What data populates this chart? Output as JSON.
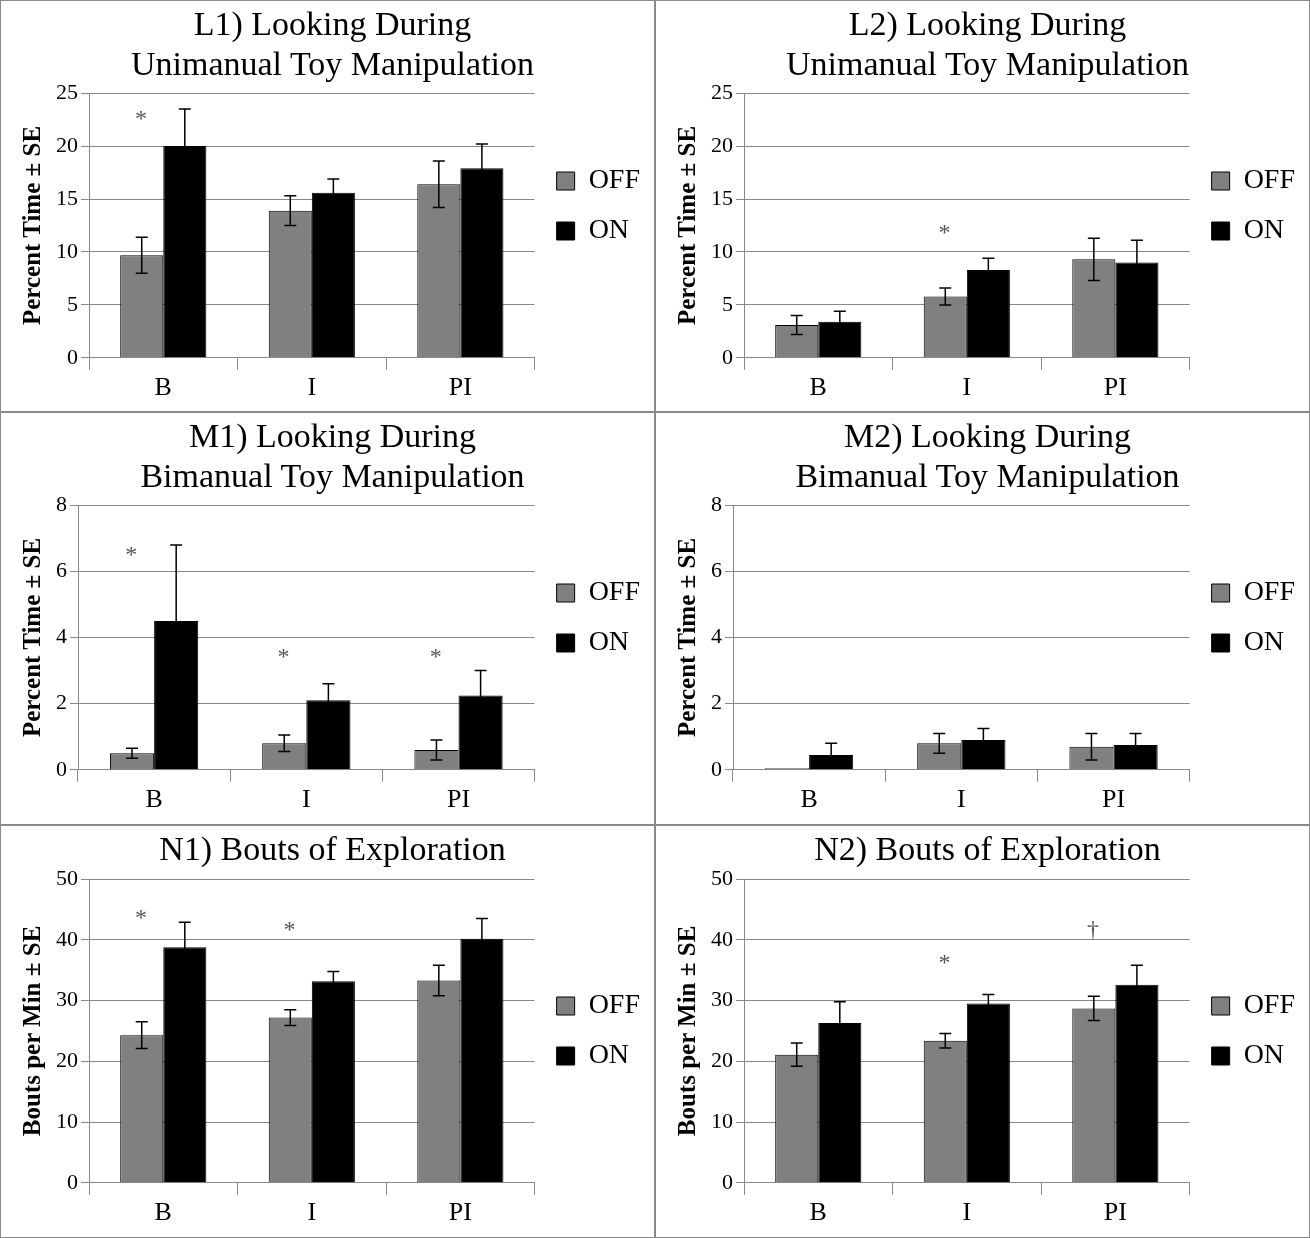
{
  "chart_data": [
    {
      "type": "bar",
      "title": "L1) Looking During\nUnimanual Toy Manipulation",
      "ylabel": "Percent Time ± SE",
      "categories": [
        "B",
        "I",
        "PI"
      ],
      "ylim": [
        0,
        25
      ],
      "yticks": [
        0,
        5,
        10,
        15,
        20,
        25
      ],
      "grid": "y",
      "legend": "right",
      "series": [
        {
          "name": "OFF",
          "color": "#808080",
          "values": [
            9.7,
            13.9,
            16.4
          ],
          "errors": [
            1.7,
            1.4,
            2.2
          ]
        },
        {
          "name": "ON",
          "color": "#000000",
          "values": [
            20.0,
            15.6,
            17.9
          ],
          "errors": [
            3.5,
            1.3,
            2.3
          ]
        }
      ],
      "annotations": [
        "*"
      ]
    },
    {
      "type": "bar",
      "title": "L2) Looking During\nUnimanual Toy Manipulation",
      "ylabel": "Percent Time ± SE",
      "categories": [
        "B",
        "I",
        "PI"
      ],
      "ylim": [
        0,
        25
      ],
      "yticks": [
        0,
        5,
        10,
        15,
        20,
        25
      ],
      "grid": "y",
      "legend": "right",
      "series": [
        {
          "name": "OFF",
          "color": "#808080",
          "values": [
            3.1,
            5.8,
            9.3
          ],
          "errors": [
            0.9,
            0.8,
            2.0
          ]
        },
        {
          "name": "ON",
          "color": "#000000",
          "values": [
            3.4,
            8.3,
            9.0
          ],
          "errors": [
            1.0,
            1.1,
            2.1
          ]
        }
      ],
      "annotations": [
        "*"
      ]
    },
    {
      "type": "bar",
      "title": "M1) Looking During\nBimanual Toy Manipulation",
      "ylabel": "Percent Time ± SE",
      "categories": [
        "B",
        "I",
        "PI"
      ],
      "ylim": [
        0,
        8
      ],
      "yticks": [
        0,
        2,
        4,
        6,
        8
      ],
      "grid": "y",
      "legend": "right",
      "series": [
        {
          "name": "OFF",
          "color": "#808080",
          "values": [
            0.5,
            0.8,
            0.6
          ],
          "errors": [
            0.15,
            0.25,
            0.3
          ]
        },
        {
          "name": "ON",
          "color": "#000000",
          "values": [
            4.5,
            2.1,
            2.25
          ],
          "errors": [
            2.3,
            0.5,
            0.75
          ]
        }
      ],
      "annotations": [
        "*",
        "*",
        "*"
      ]
    },
    {
      "type": "bar",
      "title": "M2) Looking During\nBimanual Toy Manipulation",
      "ylabel": "Percent Time ± SE",
      "categories": [
        "B",
        "I",
        "PI"
      ],
      "ylim": [
        0,
        8
      ],
      "yticks": [
        0,
        2,
        4,
        6,
        8
      ],
      "grid": "y",
      "legend": "right",
      "series": [
        {
          "name": "OFF",
          "color": "#808080",
          "values": [
            0.05,
            0.8,
            0.7
          ],
          "errors": [
            null,
            0.3,
            0.4
          ]
        },
        {
          "name": "ON",
          "color": "#000000",
          "values": [
            0.45,
            0.9,
            0.75
          ],
          "errors": [
            0.35,
            0.35,
            0.35
          ]
        }
      ]
    },
    {
      "type": "bar",
      "title": "N1) Bouts of Exploration",
      "ylabel": "Bouts per Min ± SE",
      "categories": [
        "B",
        "I",
        "PI"
      ],
      "ylim": [
        0,
        50
      ],
      "yticks": [
        0,
        10,
        20,
        30,
        40,
        50
      ],
      "grid": "y",
      "legend": "right",
      "series": [
        {
          "name": "OFF",
          "color": "#808080",
          "values": [
            24.3,
            27.2,
            33.3
          ],
          "errors": [
            2.2,
            1.3,
            2.5
          ]
        },
        {
          "name": "ON",
          "color": "#000000",
          "values": [
            38.8,
            33.2,
            40.2
          ],
          "errors": [
            4.1,
            1.6,
            3.3
          ]
        }
      ],
      "annotations": [
        "*",
        "*"
      ]
    },
    {
      "type": "bar",
      "title": "N2) Bouts of Exploration",
      "ylabel": "Bouts per Min ± SE",
      "categories": [
        "B",
        "I",
        "PI"
      ],
      "ylim": [
        0,
        50
      ],
      "yticks": [
        0,
        10,
        20,
        30,
        40,
        50
      ],
      "grid": "y",
      "legend": "right",
      "series": [
        {
          "name": "OFF",
          "color": "#808080",
          "values": [
            21.1,
            23.4,
            28.7
          ],
          "errors": [
            1.9,
            1.2,
            2.0
          ]
        },
        {
          "name": "ON",
          "color": "#000000",
          "values": [
            26.3,
            29.5,
            32.6
          ],
          "errors": [
            3.5,
            1.5,
            3.2
          ]
        }
      ],
      "annotations": [
        "*",
        "†"
      ]
    }
  ]
}
